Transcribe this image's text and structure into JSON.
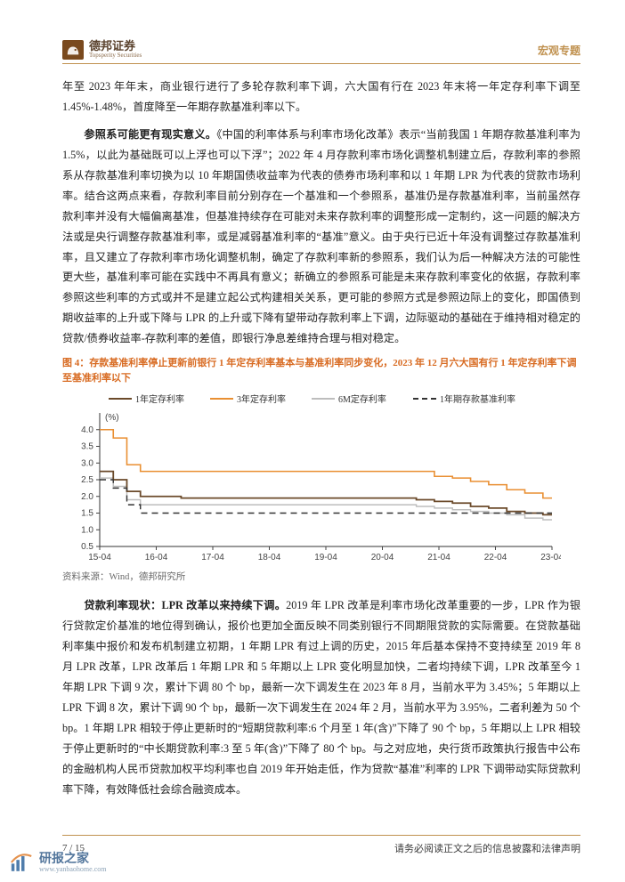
{
  "brand": {
    "cn": "德邦证券",
    "en": "Topsperity Securities"
  },
  "header": {
    "doc_label": "宏观专题"
  },
  "para1": "年至 2023 年年末，商业银行进行了多轮存款利率下调，六大国有行在 2023 年末将一年定存利率下调至 1.45%-1.48%，首度降至一年期存款基准利率以下。",
  "para2_bold": "参照系可能更有现实意义。",
  "para2": "《中国的利率体系与利率市场化改革》表示“当前我国 1 年期存款基准利率为 1.5%，以此为基础既可以上浮也可以下浮”；2022 年 4 月存款利率市场化调整机制建立后，存款利率的参照系从存款基准利率切换为以 10 年期国债收益率为代表的债券市场利率和以 1 年期 LPR 为代表的贷款市场利率。结合这两点来看，存款利率目前分别存在一个基准和一个参照系，基准仍是存款基准利率，当前虽然存款利率并没有大幅偏离基准，但基准持续存在可能对未来存款利率的调整形成一定制约，这一问题的解决方法或是央行调整存款基准利率，或是减弱基准利率的“基准”意义。由于央行已近十年没有调整过存款基准利率，且又建立了存款利率市场化调整机制，确定了存款利率新的参照系，我们认为后一种解决方法的可能性更大些，基准利率可能在实践中不再具有意义；新确立的参照系可能是未来存款利率变化的依据，存款利率参照这些利率的方式或并不是建立起公式构建相关关系，更可能的参照方式是参照边际上的变化，即国债到期收益率的上升或下降与 LPR 的上升或下降有望带动存款利率上下调，边际驱动的基础在于维持相对稳定的贷款/债券收益率-存款利率的差值，即银行净息差维持合理与相对稳定。",
  "figure": {
    "caption": "图 4：存款基准利率停止更新前银行 1 年定存利率基本与基准利率同步变化，2023 年 12 月六大国有行 1 年定存利率下调至基准利率以下",
    "source": "资料来源：Wind，德邦研究所",
    "legend": [
      "1年定存利率",
      "3年定存利率",
      "6M定存利率",
      "1年期存款基准利率"
    ],
    "colors": {
      "s1_1y": "#6B4A2A",
      "s2_3y": "#E98F32",
      "s3_6m": "#BDBDBD",
      "s4_base": "#333333",
      "axis": "#444444",
      "border": "#333333"
    },
    "y": {
      "unit_label": "(%)",
      "min": 0.5,
      "max": 4.5,
      "ticks": [
        0.5,
        1.0,
        1.5,
        2.0,
        2.5,
        3.0,
        3.5,
        4.0
      ],
      "fontsize": 10
    },
    "x": {
      "ticks": [
        "15-04",
        "16-04",
        "17-04",
        "18-04",
        "19-04",
        "20-04",
        "21-04",
        "22-04",
        "23-04"
      ],
      "fontsize": 10
    },
    "series": {
      "threeyr": [
        [
          0,
          4.0
        ],
        [
          3,
          3.75
        ],
        [
          6,
          2.95
        ],
        [
          9,
          2.75
        ],
        [
          12,
          2.75
        ],
        [
          18,
          2.75
        ],
        [
          24,
          2.75
        ],
        [
          30,
          2.75
        ],
        [
          36,
          2.75
        ],
        [
          42,
          2.75
        ],
        [
          48,
          2.75
        ],
        [
          54,
          2.75
        ],
        [
          60,
          2.75
        ],
        [
          66,
          2.75
        ],
        [
          70,
          2.75
        ],
        [
          74,
          2.6
        ],
        [
          78,
          2.55
        ],
        [
          82,
          2.45
        ],
        [
          86,
          2.35
        ],
        [
          90,
          2.2
        ],
        [
          94,
          2.1
        ],
        [
          98,
          1.95
        ],
        [
          100,
          1.95
        ]
      ],
      "oneyr": [
        [
          0,
          2.75
        ],
        [
          3,
          2.5
        ],
        [
          6,
          2.15
        ],
        [
          9,
          2.0
        ],
        [
          12,
          2.0
        ],
        [
          18,
          1.95
        ],
        [
          24,
          1.95
        ],
        [
          30,
          1.95
        ],
        [
          36,
          1.95
        ],
        [
          42,
          1.95
        ],
        [
          48,
          1.95
        ],
        [
          54,
          1.95
        ],
        [
          60,
          1.95
        ],
        [
          66,
          1.95
        ],
        [
          70,
          1.9
        ],
        [
          74,
          1.85
        ],
        [
          78,
          1.8
        ],
        [
          82,
          1.7
        ],
        [
          86,
          1.65
        ],
        [
          90,
          1.55
        ],
        [
          94,
          1.5
        ],
        [
          98,
          1.45
        ],
        [
          100,
          1.45
        ]
      ],
      "sixm": [
        [
          0,
          2.55
        ],
        [
          3,
          2.3
        ],
        [
          6,
          1.9
        ],
        [
          9,
          1.75
        ],
        [
          12,
          1.75
        ],
        [
          18,
          1.75
        ],
        [
          24,
          1.75
        ],
        [
          30,
          1.75
        ],
        [
          36,
          1.75
        ],
        [
          42,
          1.75
        ],
        [
          48,
          1.75
        ],
        [
          54,
          1.75
        ],
        [
          60,
          1.75
        ],
        [
          66,
          1.75
        ],
        [
          70,
          1.7
        ],
        [
          74,
          1.65
        ],
        [
          78,
          1.6
        ],
        [
          82,
          1.55
        ],
        [
          86,
          1.5
        ],
        [
          90,
          1.45
        ],
        [
          94,
          1.35
        ],
        [
          98,
          1.3
        ],
        [
          100,
          1.3
        ]
      ],
      "base": [
        [
          0,
          2.5
        ],
        [
          3,
          2.25
        ],
        [
          6,
          1.75
        ],
        [
          9,
          1.5
        ],
        [
          12,
          1.5
        ],
        [
          18,
          1.5
        ],
        [
          24,
          1.5
        ],
        [
          30,
          1.5
        ],
        [
          36,
          1.5
        ],
        [
          42,
          1.5
        ],
        [
          48,
          1.5
        ],
        [
          54,
          1.5
        ],
        [
          60,
          1.5
        ],
        [
          66,
          1.5
        ],
        [
          72,
          1.5
        ],
        [
          78,
          1.5
        ],
        [
          84,
          1.5
        ],
        [
          90,
          1.5
        ],
        [
          96,
          1.5
        ],
        [
          100,
          1.5
        ]
      ]
    }
  },
  "para3_bold": "贷款利率现状：LPR 改革以来持续下调。",
  "para3": "2019 年 LPR 改革是利率市场化改革重要的一步，LPR 作为银行贷款定价基准的地位得到确认，报价也更加全面反映不同类别银行不同期限贷款的实际需要。在贷款基础利率集中报价和发布机制建立初期，1 年期 LPR 有过上调的历史，2015 年后基本保持不变持续至 2019 年 8 月 LPR 改革，LPR 改革后 1 年期 LPR 和 5 年期以上 LPR 变化明显加快，二者均持续下调，LPR 改革至今 1 年期 LPR 下调 9 次，累计下调 80 个 bp，最新一次下调发生在 2023 年 8 月，当前水平为 3.45%；5 年期以上 LPR 下调 8 次，累计下调 90 个 bp，最新一次下调发生在 2024 年 2 月，当前水平为 3.95%，二者利差为 50 个 bp。1 年期 LPR 相较于停止更新时的“短期贷款利率:6 个月至 1 年(含)”下降了 90 个 bp，5 年期以上 LPR 相较于停止更新时的“中长期贷款利率:3 至 5 年(含)”下降了 80 个 bp。与之对应地，央行货币政策执行报告中公布的金融机构人民币贷款加权平均利率也自 2019 年开始走低，作为贷款“基准”利率的 LPR 下调带动实际贷款利率下降，有效降低社会综合融资成本。",
  "footer": {
    "page": "7 / 15",
    "disclaimer": "请务必阅读正文之后的信息披露和法律声明"
  },
  "watermark": {
    "name": "研报之家",
    "sub": "www.yanbaohome.com"
  }
}
